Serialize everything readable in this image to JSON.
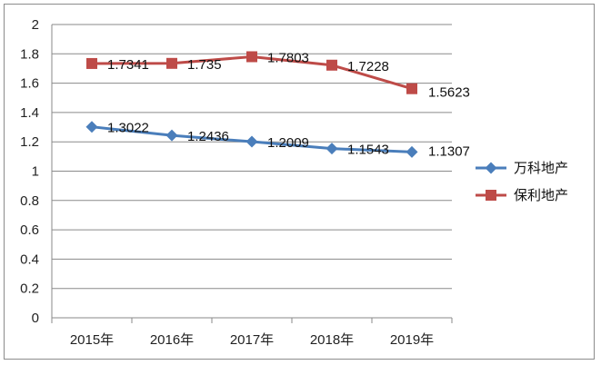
{
  "chart_data": {
    "type": "line",
    "categories": [
      "2015年",
      "2016年",
      "2017年",
      "2018年",
      "2019年"
    ],
    "ylim": [
      0,
      2
    ],
    "yticks": [
      "0",
      "0.2",
      "0.4",
      "0.6",
      "0.8",
      "1",
      "1.2",
      "1.4",
      "1.6",
      "1.8",
      "2"
    ],
    "grid": true,
    "legend_position": "right",
    "series": [
      {
        "name": "万科地产",
        "color": "#4a7ebb",
        "marker": "diamond",
        "values": [
          1.3022,
          1.2436,
          1.2009,
          1.1543,
          1.1307
        ],
        "labels": [
          "1.3022",
          "1.2436",
          "1.2009",
          "1.1543",
          "1.1307"
        ]
      },
      {
        "name": "保利地产",
        "color": "#be4b48",
        "marker": "square",
        "values": [
          1.7341,
          1.735,
          1.7803,
          1.7228,
          1.5623
        ],
        "labels": [
          "1.7341",
          "1.735",
          "1.7803",
          "1.7228",
          "1.5623"
        ]
      }
    ]
  }
}
